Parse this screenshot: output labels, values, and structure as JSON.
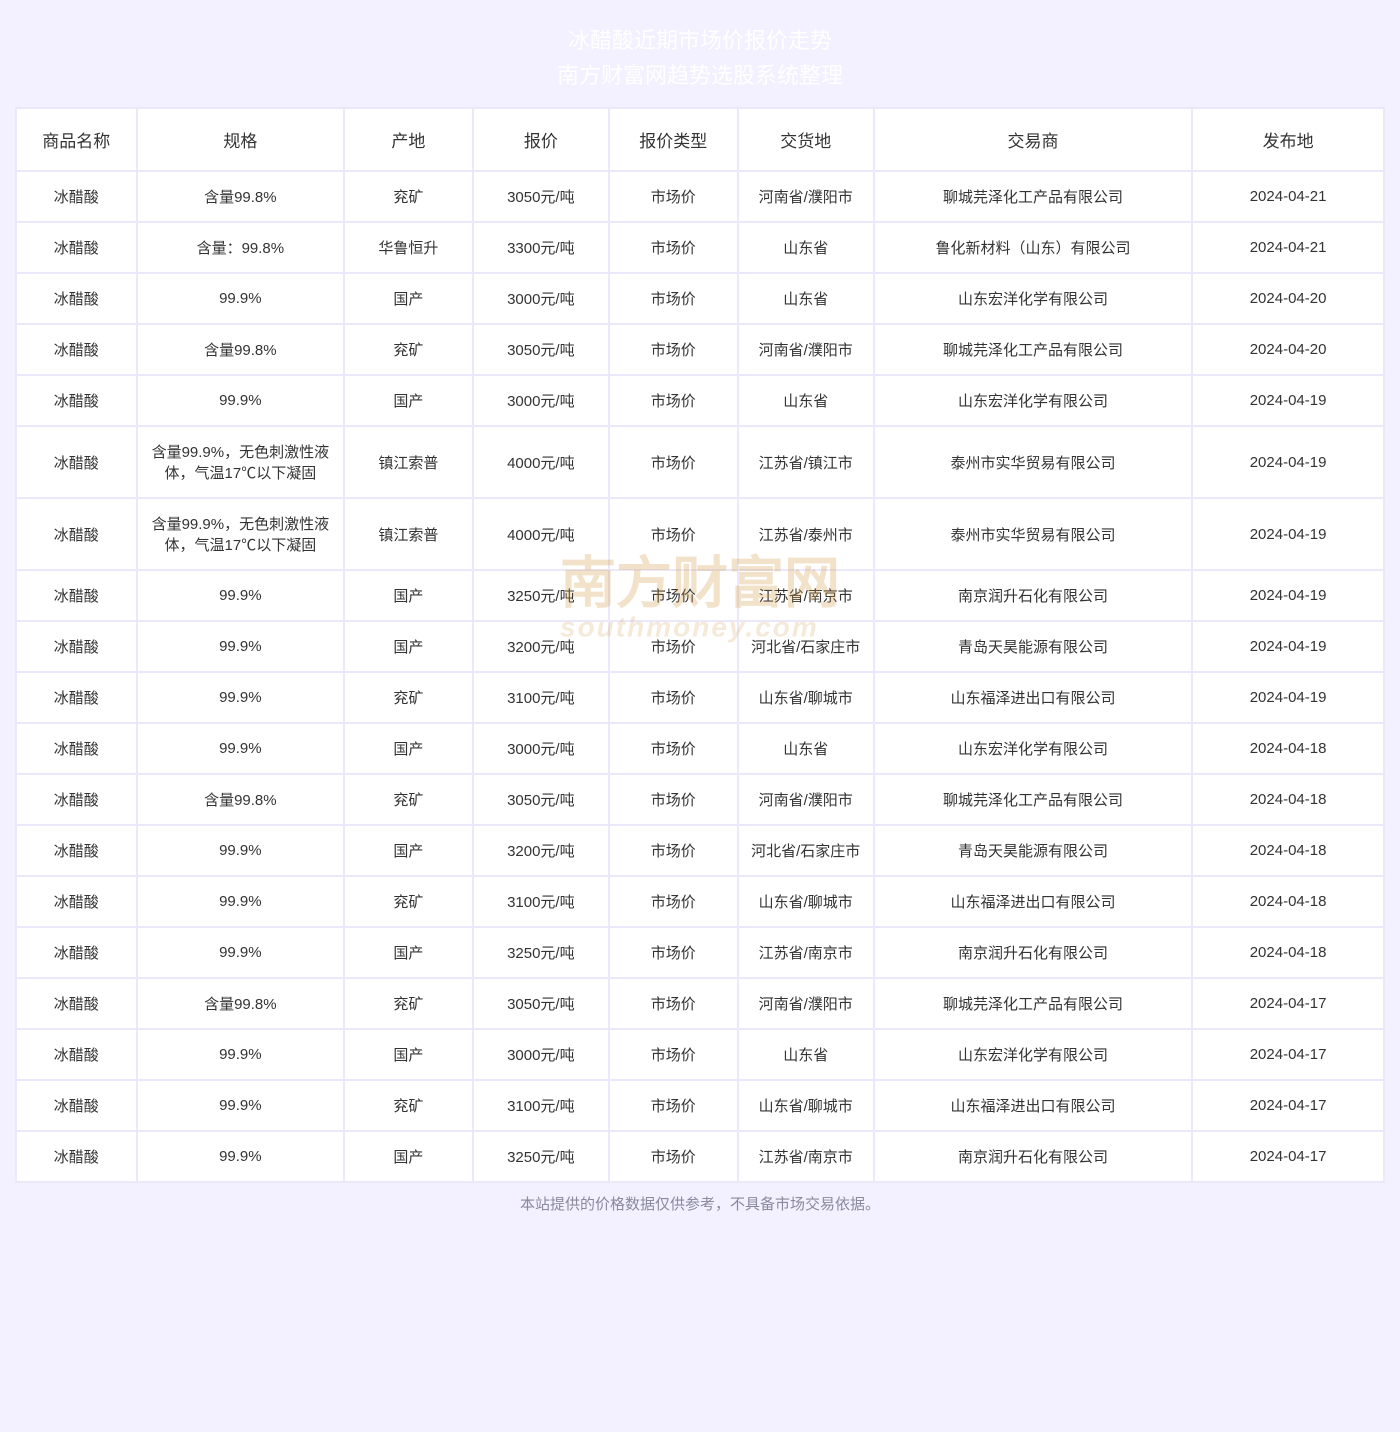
{
  "header": {
    "title_line1": "冰醋酸近期市场价报价走势",
    "title_line2": "南方财富网趋势选股系统整理"
  },
  "watermark": {
    "main": "南方财富网",
    "sub": "southmoney.com"
  },
  "table": {
    "columns": [
      "商品名称",
      "规格",
      "产地",
      "报价",
      "报价类型",
      "交货地",
      "交易商",
      "发布地"
    ],
    "rows": [
      [
        "冰醋酸",
        "含量99.8%",
        "兖矿",
        "3050元/吨",
        "市场价",
        "河南省/濮阳市",
        "聊城芫泽化工产品有限公司",
        "2024-04-21"
      ],
      [
        "冰醋酸",
        "含量：99.8%",
        "华鲁恒升",
        "3300元/吨",
        "市场价",
        "山东省",
        "鲁化新材料（山东）有限公司",
        "2024-04-21"
      ],
      [
        "冰醋酸",
        "99.9%",
        "国产",
        "3000元/吨",
        "市场价",
        "山东省",
        "山东宏洋化学有限公司",
        "2024-04-20"
      ],
      [
        "冰醋酸",
        "含量99.8%",
        "兖矿",
        "3050元/吨",
        "市场价",
        "河南省/濮阳市",
        "聊城芫泽化工产品有限公司",
        "2024-04-20"
      ],
      [
        "冰醋酸",
        "99.9%",
        "国产",
        "3000元/吨",
        "市场价",
        "山东省",
        "山东宏洋化学有限公司",
        "2024-04-19"
      ],
      [
        "冰醋酸",
        "含量99.9%，无色刺激性液体，气温17℃以下凝固",
        "镇江索普",
        "4000元/吨",
        "市场价",
        "江苏省/镇江市",
        "泰州市实华贸易有限公司",
        "2024-04-19"
      ],
      [
        "冰醋酸",
        "含量99.9%，无色刺激性液体，气温17℃以下凝固",
        "镇江索普",
        "4000元/吨",
        "市场价",
        "江苏省/泰州市",
        "泰州市实华贸易有限公司",
        "2024-04-19"
      ],
      [
        "冰醋酸",
        "99.9%",
        "国产",
        "3250元/吨",
        "市场价",
        "江苏省/南京市",
        "南京润升石化有限公司",
        "2024-04-19"
      ],
      [
        "冰醋酸",
        "99.9%",
        "国产",
        "3200元/吨",
        "市场价",
        "河北省/石家庄市",
        "青岛天昊能源有限公司",
        "2024-04-19"
      ],
      [
        "冰醋酸",
        "99.9%",
        "兖矿",
        "3100元/吨",
        "市场价",
        "山东省/聊城市",
        "山东福泽进出口有限公司",
        "2024-04-19"
      ],
      [
        "冰醋酸",
        "99.9%",
        "国产",
        "3000元/吨",
        "市场价",
        "山东省",
        "山东宏洋化学有限公司",
        "2024-04-18"
      ],
      [
        "冰醋酸",
        "含量99.8%",
        "兖矿",
        "3050元/吨",
        "市场价",
        "河南省/濮阳市",
        "聊城芫泽化工产品有限公司",
        "2024-04-18"
      ],
      [
        "冰醋酸",
        "99.9%",
        "国产",
        "3200元/吨",
        "市场价",
        "河北省/石家庄市",
        "青岛天昊能源有限公司",
        "2024-04-18"
      ],
      [
        "冰醋酸",
        "99.9%",
        "兖矿",
        "3100元/吨",
        "市场价",
        "山东省/聊城市",
        "山东福泽进出口有限公司",
        "2024-04-18"
      ],
      [
        "冰醋酸",
        "99.9%",
        "国产",
        "3250元/吨",
        "市场价",
        "江苏省/南京市",
        "南京润升石化有限公司",
        "2024-04-18"
      ],
      [
        "冰醋酸",
        "含量99.8%",
        "兖矿",
        "3050元/吨",
        "市场价",
        "河南省/濮阳市",
        "聊城芫泽化工产品有限公司",
        "2024-04-17"
      ],
      [
        "冰醋酸",
        "99.9%",
        "国产",
        "3000元/吨",
        "市场价",
        "山东省",
        "山东宏洋化学有限公司",
        "2024-04-17"
      ],
      [
        "冰醋酸",
        "99.9%",
        "兖矿",
        "3100元/吨",
        "市场价",
        "山东省/聊城市",
        "山东福泽进出口有限公司",
        "2024-04-17"
      ],
      [
        "冰醋酸",
        "99.9%",
        "国产",
        "3250元/吨",
        "市场价",
        "江苏省/南京市",
        "南京润升石化有限公司",
        "2024-04-17"
      ]
    ]
  },
  "footer": {
    "disclaimer": "本站提供的价格数据仅供参考，不具备市场交易依据。"
  },
  "style": {
    "page_background": "#f3f0ff",
    "table_gap_color": "#ece8fb",
    "cell_background": "#ffffff",
    "header_text_color": "#ffffff",
    "footer_text_color": "#8a8a9a",
    "cell_text_color": "#333333",
    "watermark_color": "rgba(210,150,60,0.28)",
    "title_fontsize": 22,
    "th_fontsize": 17,
    "td_fontsize": 15,
    "footer_fontsize": 15
  }
}
